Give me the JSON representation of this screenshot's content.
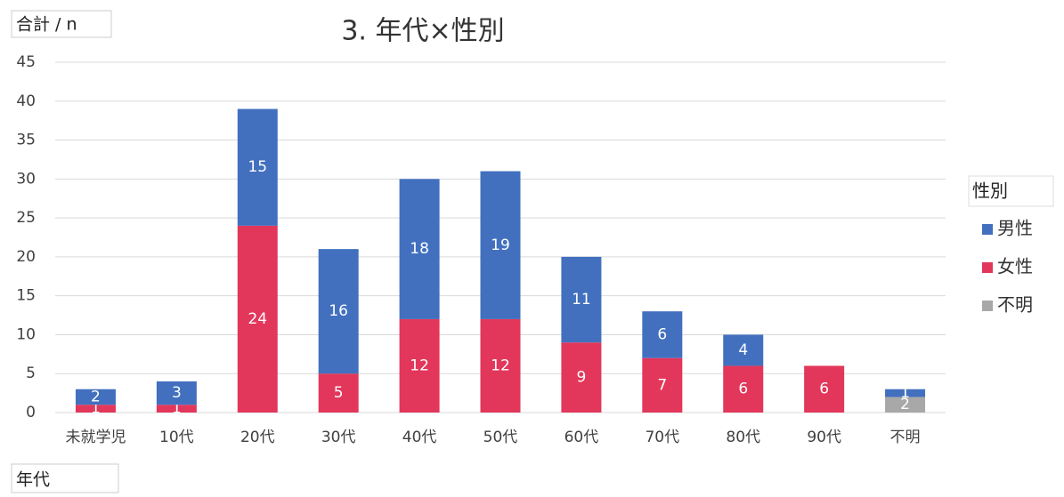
{
  "chart_data": {
    "type": "stacked_bar",
    "title": "3. 年代×性別",
    "y_label": "合計 / n",
    "x_label": "年代",
    "legend_title": "性別",
    "legend_position": "right",
    "categories": [
      "未就学児",
      "10代",
      "20代",
      "30代",
      "40代",
      "50代",
      "60代",
      "70代",
      "80代",
      "90代",
      "不明"
    ],
    "series": [
      {
        "name": "男性",
        "color": "#4270bf",
        "values": [
          2,
          3,
          15,
          16,
          18,
          19,
          11,
          6,
          4,
          null,
          1
        ]
      },
      {
        "name": "女性",
        "color": "#e2375b",
        "values": [
          1,
          1,
          24,
          5,
          12,
          12,
          9,
          7,
          6,
          6,
          null
        ]
      },
      {
        "name": "不明",
        "color": "#a8a8a8",
        "values": [
          null,
          null,
          null,
          null,
          null,
          null,
          null,
          null,
          null,
          null,
          2
        ]
      }
    ],
    "ylim": [
      0,
      45
    ],
    "yticks": [
      0,
      5,
      10,
      15,
      20,
      25,
      30,
      35,
      40,
      45
    ],
    "grid": true
  }
}
